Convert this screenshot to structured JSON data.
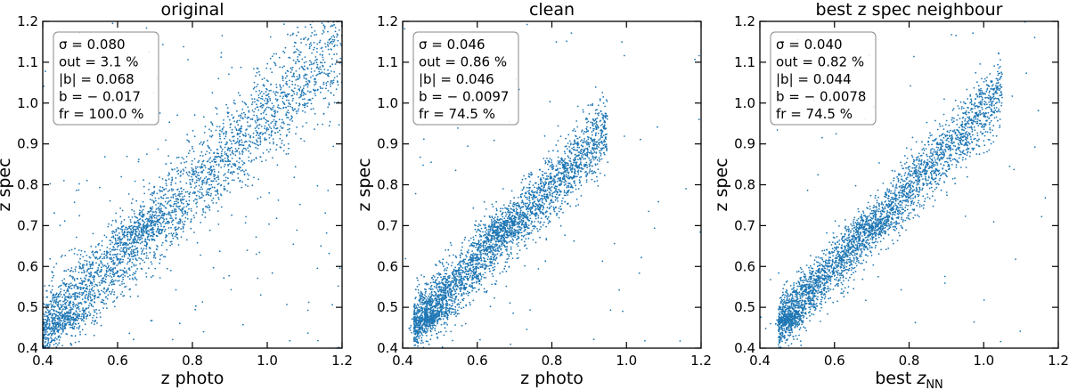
{
  "figure": {
    "point_color": "#1f77b4",
    "point_count_each": 3500
  },
  "chart_data": [
    {
      "type": "scatter",
      "title": "original",
      "xlabel": "z photo",
      "ylabel": "z spec",
      "xlim": [
        0.4,
        1.2
      ],
      "ylim": [
        0.4,
        1.2
      ],
      "xticks": [
        "0.4",
        "0.6",
        "0.8",
        "1.0",
        "1.2"
      ],
      "yticks": [
        "0.4",
        "0.5",
        "0.6",
        "0.7",
        "0.8",
        "0.9",
        "1.0",
        "1.1",
        "1.2"
      ],
      "stats": [
        "σ = 0.080",
        "out = 3.1 %",
        "|b| = 0.068",
        "b = − 0.017",
        "fr = 100.0 %"
      ],
      "distribution": {
        "x_range": [
          0.4,
          1.2
        ],
        "slope": 0.88,
        "intercept": 0.09,
        "scatter_sigma": 0.055,
        "outlier_fraction": 0.05,
        "clusters": [
          [
            0.47,
            0.47,
            0.028,
            0.012,
            0.05
          ],
          [
            0.66,
            0.69,
            0.04,
            0.02,
            0.07
          ]
        ]
      }
    },
    {
      "type": "scatter",
      "title": "clean",
      "xlabel": "z photo",
      "ylabel": "z spec",
      "xlim": [
        0.4,
        1.2
      ],
      "ylim": [
        0.4,
        1.2
      ],
      "xticks": [
        "0.4",
        "0.6",
        "0.8",
        "1.0",
        "1.2"
      ],
      "yticks": [
        "0.4",
        "0.5",
        "0.6",
        "0.7",
        "0.8",
        "0.9",
        "1.0",
        "1.1",
        "1.2"
      ],
      "stats": [
        "σ = 0.046",
        "out = 0.86 %",
        "|b| = 0.046",
        "b = − 0.0097",
        "fr = 74.5 %"
      ],
      "distribution": {
        "x_range": [
          0.43,
          0.95
        ],
        "slope": 0.92,
        "intercept": 0.06,
        "scatter_sigma": 0.042,
        "outlier_fraction": 0.02,
        "clusters": [
          [
            0.48,
            0.475,
            0.025,
            0.01,
            0.05
          ],
          [
            0.66,
            0.69,
            0.035,
            0.018,
            0.06
          ]
        ]
      }
    },
    {
      "type": "scatter",
      "title": "best z spec neighbour",
      "xlabel": "best z",
      "xlabel_sub": "NN",
      "ylabel": "z spec",
      "xlim": [
        0.4,
        1.2
      ],
      "ylim": [
        0.4,
        1.2
      ],
      "xticks": [
        "0.4",
        "0.6",
        "0.8",
        "1.0",
        "1.2"
      ],
      "yticks": [
        "0.4",
        "0.5",
        "0.6",
        "0.7",
        "0.8",
        "0.9",
        "1.0",
        "1.1",
        "1.2"
      ],
      "stats": [
        "σ = 0.040",
        "out = 0.82 %",
        "|b| = 0.044",
        "b = − 0.0078",
        "fr = 74.5 %"
      ],
      "distribution": {
        "x_range": [
          0.45,
          1.05
        ],
        "slope": 0.95,
        "intercept": 0.03,
        "scatter_sigma": 0.038,
        "outlier_fraction": 0.015,
        "clusters": [
          [
            0.48,
            0.47,
            0.022,
            0.01,
            0.05
          ],
          [
            0.7,
            0.7,
            0.035,
            0.015,
            0.05
          ]
        ]
      }
    }
  ]
}
